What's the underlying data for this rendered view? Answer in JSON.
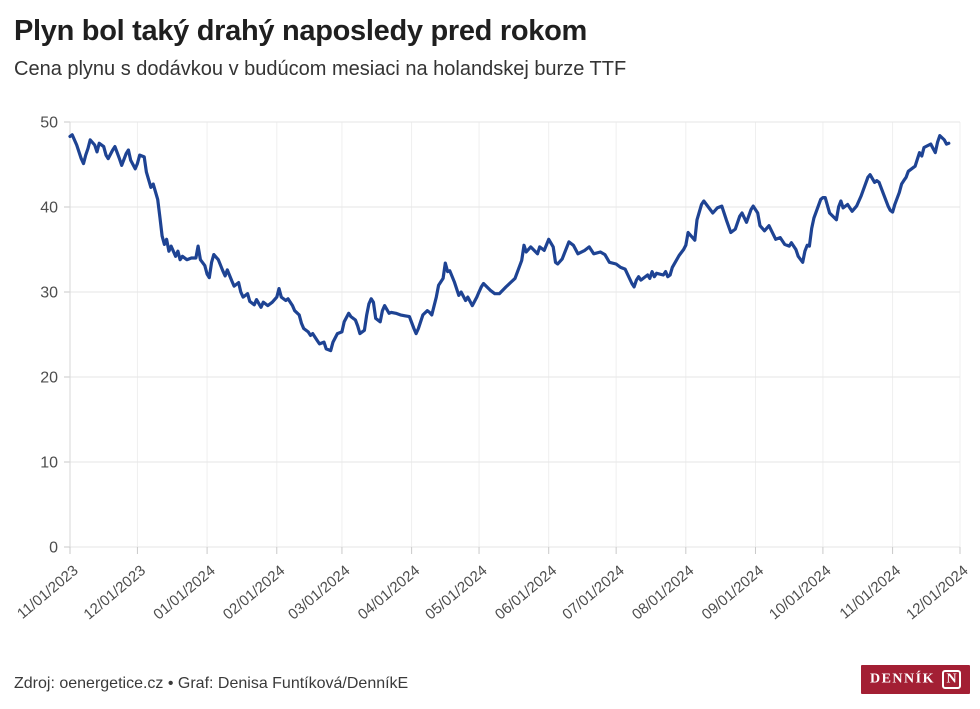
{
  "header": {
    "title": "Plyn bol taký drahý naposledy pred rokom",
    "subtitle": "Cena plynu s dodávkou v budúcom mesiaci na holandskej burze TTF"
  },
  "footer": {
    "source": "Zdroj: oenergetice.cz • Graf: Denisa Funtíková/DenníkE",
    "logo_text": "DENNÍK",
    "logo_n": "N"
  },
  "colors": {
    "line": "#1e4393",
    "grid": "#e6e6e6",
    "vgrid": "#efefef",
    "axis": "#d7d7d7",
    "tick": "#c9c9c9",
    "axis_text": "#4d4d4d",
    "logo_red": "#a31f34"
  },
  "chart_data": {
    "type": "line",
    "title": "Plyn bol taký drahý naposledy pred rokom",
    "subtitle": "Cena plynu s dodávkou v budúcom mesiaci na holandskej burze TTF",
    "xlabel": "",
    "ylabel": "",
    "ylim": [
      0,
      50
    ],
    "y_ticks": [
      0,
      10,
      20,
      30,
      40,
      50
    ],
    "x_domain": [
      "2023-11-01",
      "2024-12-01"
    ],
    "x_ticks": [
      "11/01/2023",
      "12/01/2023",
      "01/01/2024",
      "02/01/2024",
      "03/01/2024",
      "04/01/2024",
      "05/01/2024",
      "06/01/2024",
      "07/01/2024",
      "08/01/2024",
      "09/01/2024",
      "10/01/2024",
      "11/01/2024",
      "12/01/2024"
    ],
    "grid": true,
    "legend": false,
    "series": [
      {
        "name": "Cena plynu TTF (mesiac vopred)",
        "points": [
          [
            "2023-11-01",
            48.3
          ],
          [
            "2023-11-02",
            48.5
          ],
          [
            "2023-11-04",
            47.3
          ],
          [
            "2023-11-06",
            45.7
          ],
          [
            "2023-11-07",
            45.1
          ],
          [
            "2023-11-08",
            46.1
          ],
          [
            "2023-11-09",
            46.9
          ],
          [
            "2023-11-10",
            47.9
          ],
          [
            "2023-11-12",
            47.3
          ],
          [
            "2023-11-13",
            46.5
          ],
          [
            "2023-11-14",
            47.5
          ],
          [
            "2023-11-16",
            47.1
          ],
          [
            "2023-11-17",
            46.1
          ],
          [
            "2023-11-18",
            45.7
          ],
          [
            "2023-11-20",
            46.7
          ],
          [
            "2023-11-21",
            47.1
          ],
          [
            "2023-11-23",
            45.7
          ],
          [
            "2023-11-24",
            44.9
          ],
          [
            "2023-11-26",
            46.3
          ],
          [
            "2023-11-27",
            46.7
          ],
          [
            "2023-11-28",
            45.5
          ],
          [
            "2023-11-30",
            44.5
          ],
          [
            "2023-12-01",
            45.1
          ],
          [
            "2023-12-02",
            46.1
          ],
          [
            "2023-12-04",
            45.9
          ],
          [
            "2023-12-05",
            44.1
          ],
          [
            "2023-12-07",
            42.3
          ],
          [
            "2023-12-08",
            42.7
          ],
          [
            "2023-12-10",
            40.9
          ],
          [
            "2023-12-11",
            38.8
          ],
          [
            "2023-12-12",
            36.6
          ],
          [
            "2023-12-13",
            35.6
          ],
          [
            "2023-12-14",
            36.2
          ],
          [
            "2023-12-15",
            34.8
          ],
          [
            "2023-12-16",
            35.4
          ],
          [
            "2023-12-18",
            34.2
          ],
          [
            "2023-12-19",
            34.8
          ],
          [
            "2023-12-20",
            33.8
          ],
          [
            "2023-12-21",
            34.2
          ],
          [
            "2023-12-23",
            33.8
          ],
          [
            "2023-12-25",
            34.0
          ],
          [
            "2023-12-27",
            34.0
          ],
          [
            "2023-12-28",
            35.4
          ],
          [
            "2023-12-29",
            33.8
          ],
          [
            "2023-12-31",
            33.1
          ],
          [
            "2024-01-01",
            32.1
          ],
          [
            "2024-01-02",
            31.7
          ],
          [
            "2024-01-03",
            33.5
          ],
          [
            "2024-01-04",
            34.4
          ],
          [
            "2024-01-06",
            33.8
          ],
          [
            "2024-01-08",
            32.5
          ],
          [
            "2024-01-09",
            31.9
          ],
          [
            "2024-01-10",
            32.6
          ],
          [
            "2024-01-12",
            31.3
          ],
          [
            "2024-01-13",
            30.7
          ],
          [
            "2024-01-15",
            31.1
          ],
          [
            "2024-01-16",
            30.0
          ],
          [
            "2024-01-17",
            29.4
          ],
          [
            "2024-01-19",
            29.8
          ],
          [
            "2024-01-20",
            28.9
          ],
          [
            "2024-01-22",
            28.5
          ],
          [
            "2024-01-23",
            29.1
          ],
          [
            "2024-01-25",
            28.2
          ],
          [
            "2024-01-26",
            28.8
          ],
          [
            "2024-01-28",
            28.4
          ],
          [
            "2024-01-30",
            28.8
          ],
          [
            "2024-02-01",
            29.4
          ],
          [
            "2024-02-02",
            30.4
          ],
          [
            "2024-02-03",
            29.4
          ],
          [
            "2024-02-05",
            29.0
          ],
          [
            "2024-02-06",
            29.2
          ],
          [
            "2024-02-08",
            28.4
          ],
          [
            "2024-02-09",
            27.8
          ],
          [
            "2024-02-11",
            27.3
          ],
          [
            "2024-02-12",
            26.3
          ],
          [
            "2024-02-13",
            25.7
          ],
          [
            "2024-02-15",
            25.3
          ],
          [
            "2024-02-16",
            24.9
          ],
          [
            "2024-02-17",
            25.1
          ],
          [
            "2024-02-19",
            24.3
          ],
          [
            "2024-02-20",
            23.9
          ],
          [
            "2024-02-22",
            24.1
          ],
          [
            "2024-02-23",
            23.3
          ],
          [
            "2024-02-25",
            23.1
          ],
          [
            "2024-02-26",
            24.1
          ],
          [
            "2024-02-28",
            25.1
          ],
          [
            "2024-03-01",
            25.3
          ],
          [
            "2024-03-02",
            26.5
          ],
          [
            "2024-03-04",
            27.5
          ],
          [
            "2024-03-05",
            27.1
          ],
          [
            "2024-03-07",
            26.7
          ],
          [
            "2024-03-08",
            26.0
          ],
          [
            "2024-03-09",
            25.1
          ],
          [
            "2024-03-11",
            25.5
          ],
          [
            "2024-03-12",
            27.3
          ],
          [
            "2024-03-13",
            28.6
          ],
          [
            "2024-03-14",
            29.2
          ],
          [
            "2024-03-15",
            28.8
          ],
          [
            "2024-03-16",
            26.9
          ],
          [
            "2024-03-18",
            26.5
          ],
          [
            "2024-03-19",
            27.8
          ],
          [
            "2024-03-20",
            28.4
          ],
          [
            "2024-03-22",
            27.5
          ],
          [
            "2024-03-23",
            27.6
          ],
          [
            "2024-03-25",
            27.5
          ],
          [
            "2024-03-27",
            27.3
          ],
          [
            "2024-03-29",
            27.2
          ],
          [
            "2024-03-31",
            27.1
          ],
          [
            "2024-04-02",
            25.7
          ],
          [
            "2024-04-03",
            25.1
          ],
          [
            "2024-04-04",
            25.7
          ],
          [
            "2024-04-06",
            27.3
          ],
          [
            "2024-04-08",
            27.8
          ],
          [
            "2024-04-09",
            27.6
          ],
          [
            "2024-04-10",
            27.3
          ],
          [
            "2024-04-12",
            29.4
          ],
          [
            "2024-04-13",
            30.8
          ],
          [
            "2024-04-15",
            31.6
          ],
          [
            "2024-04-16",
            33.4
          ],
          [
            "2024-04-17",
            32.4
          ],
          [
            "2024-04-18",
            32.5
          ],
          [
            "2024-04-20",
            31.2
          ],
          [
            "2024-04-22",
            29.6
          ],
          [
            "2024-04-23",
            30.0
          ],
          [
            "2024-04-25",
            29.0
          ],
          [
            "2024-04-26",
            29.4
          ],
          [
            "2024-04-28",
            28.4
          ],
          [
            "2024-04-30",
            29.4
          ],
          [
            "2024-05-01",
            30.0
          ],
          [
            "2024-05-02",
            30.6
          ],
          [
            "2024-05-03",
            31.0
          ],
          [
            "2024-05-06",
            30.2
          ],
          [
            "2024-05-08",
            29.8
          ],
          [
            "2024-05-10",
            29.8
          ],
          [
            "2024-05-13",
            30.6
          ],
          [
            "2024-05-15",
            31.1
          ],
          [
            "2024-05-17",
            31.6
          ],
          [
            "2024-05-20",
            33.7
          ],
          [
            "2024-05-21",
            35.5
          ],
          [
            "2024-05-22",
            34.7
          ],
          [
            "2024-05-24",
            35.3
          ],
          [
            "2024-05-27",
            34.5
          ],
          [
            "2024-05-28",
            35.3
          ],
          [
            "2024-05-30",
            34.9
          ],
          [
            "2024-06-01",
            36.2
          ],
          [
            "2024-06-03",
            35.3
          ],
          [
            "2024-06-04",
            33.5
          ],
          [
            "2024-06-05",
            33.3
          ],
          [
            "2024-06-07",
            33.9
          ],
          [
            "2024-06-10",
            35.9
          ],
          [
            "2024-06-12",
            35.5
          ],
          [
            "2024-06-14",
            34.5
          ],
          [
            "2024-06-17",
            34.9
          ],
          [
            "2024-06-19",
            35.3
          ],
          [
            "2024-06-21",
            34.5
          ],
          [
            "2024-06-24",
            34.7
          ],
          [
            "2024-06-26",
            34.4
          ],
          [
            "2024-06-28",
            33.5
          ],
          [
            "2024-07-01",
            33.3
          ],
          [
            "2024-07-03",
            32.9
          ],
          [
            "2024-07-05",
            32.7
          ],
          [
            "2024-07-08",
            31.0
          ],
          [
            "2024-07-09",
            30.6
          ],
          [
            "2024-07-10",
            31.4
          ],
          [
            "2024-07-11",
            31.8
          ],
          [
            "2024-07-12",
            31.4
          ],
          [
            "2024-07-15",
            32.0
          ],
          [
            "2024-07-16",
            31.6
          ],
          [
            "2024-07-17",
            32.4
          ],
          [
            "2024-07-18",
            31.8
          ],
          [
            "2024-07-19",
            32.2
          ],
          [
            "2024-07-22",
            32.0
          ],
          [
            "2024-07-23",
            32.4
          ],
          [
            "2024-07-24",
            31.8
          ],
          [
            "2024-07-25",
            32.0
          ],
          [
            "2024-07-26",
            32.9
          ],
          [
            "2024-07-29",
            34.3
          ],
          [
            "2024-07-31",
            35.0
          ],
          [
            "2024-08-01",
            35.5
          ],
          [
            "2024-08-02",
            37.0
          ],
          [
            "2024-08-05",
            36.1
          ],
          [
            "2024-08-06",
            38.5
          ],
          [
            "2024-08-08",
            40.3
          ],
          [
            "2024-08-09",
            40.7
          ],
          [
            "2024-08-11",
            40.0
          ],
          [
            "2024-08-13",
            39.3
          ],
          [
            "2024-08-15",
            39.9
          ],
          [
            "2024-08-17",
            40.1
          ],
          [
            "2024-08-19",
            38.5
          ],
          [
            "2024-08-21",
            37.0
          ],
          [
            "2024-08-23",
            37.4
          ],
          [
            "2024-08-25",
            38.9
          ],
          [
            "2024-08-26",
            39.3
          ],
          [
            "2024-08-28",
            38.2
          ],
          [
            "2024-08-30",
            39.7
          ],
          [
            "2024-08-31",
            40.1
          ],
          [
            "2024-09-02",
            39.3
          ],
          [
            "2024-09-03",
            37.8
          ],
          [
            "2024-09-05",
            37.2
          ],
          [
            "2024-09-07",
            37.8
          ],
          [
            "2024-09-10",
            36.2
          ],
          [
            "2024-09-12",
            36.4
          ],
          [
            "2024-09-14",
            35.6
          ],
          [
            "2024-09-16",
            35.4
          ],
          [
            "2024-09-17",
            35.8
          ],
          [
            "2024-09-19",
            35.0
          ],
          [
            "2024-09-20",
            34.2
          ],
          [
            "2024-09-22",
            33.5
          ],
          [
            "2024-09-23",
            34.8
          ],
          [
            "2024-09-24",
            35.5
          ],
          [
            "2024-09-25",
            35.4
          ],
          [
            "2024-09-26",
            37.5
          ],
          [
            "2024-09-27",
            38.7
          ],
          [
            "2024-09-30",
            40.9
          ],
          [
            "2024-10-01",
            41.1
          ],
          [
            "2024-10-02",
            41.1
          ],
          [
            "2024-10-04",
            39.3
          ],
          [
            "2024-10-07",
            38.5
          ],
          [
            "2024-10-08",
            40.0
          ],
          [
            "2024-10-09",
            40.7
          ],
          [
            "2024-10-10",
            39.9
          ],
          [
            "2024-10-12",
            40.3
          ],
          [
            "2024-10-14",
            39.5
          ],
          [
            "2024-10-16",
            40.1
          ],
          [
            "2024-10-18",
            41.3
          ],
          [
            "2024-10-21",
            43.5
          ],
          [
            "2024-10-22",
            43.8
          ],
          [
            "2024-10-24",
            42.9
          ],
          [
            "2024-10-25",
            43.1
          ],
          [
            "2024-10-26",
            42.9
          ],
          [
            "2024-10-28",
            41.5
          ],
          [
            "2024-10-30",
            40.1
          ],
          [
            "2024-10-31",
            39.6
          ],
          [
            "2024-11-01",
            39.4
          ],
          [
            "2024-11-02",
            40.3
          ],
          [
            "2024-11-04",
            41.7
          ],
          [
            "2024-11-05",
            42.7
          ],
          [
            "2024-11-06",
            43.1
          ],
          [
            "2024-11-07",
            43.5
          ],
          [
            "2024-11-08",
            44.2
          ],
          [
            "2024-11-11",
            44.8
          ],
          [
            "2024-11-12",
            45.6
          ],
          [
            "2024-11-13",
            46.4
          ],
          [
            "2024-11-14",
            46.0
          ],
          [
            "2024-11-15",
            47.0
          ],
          [
            "2024-11-18",
            47.4
          ],
          [
            "2024-11-19",
            46.9
          ],
          [
            "2024-11-20",
            46.4
          ],
          [
            "2024-11-21",
            47.6
          ],
          [
            "2024-11-22",
            48.4
          ],
          [
            "2024-11-24",
            47.9
          ],
          [
            "2024-11-25",
            47.4
          ],
          [
            "2024-11-26",
            47.5
          ]
        ]
      }
    ]
  }
}
